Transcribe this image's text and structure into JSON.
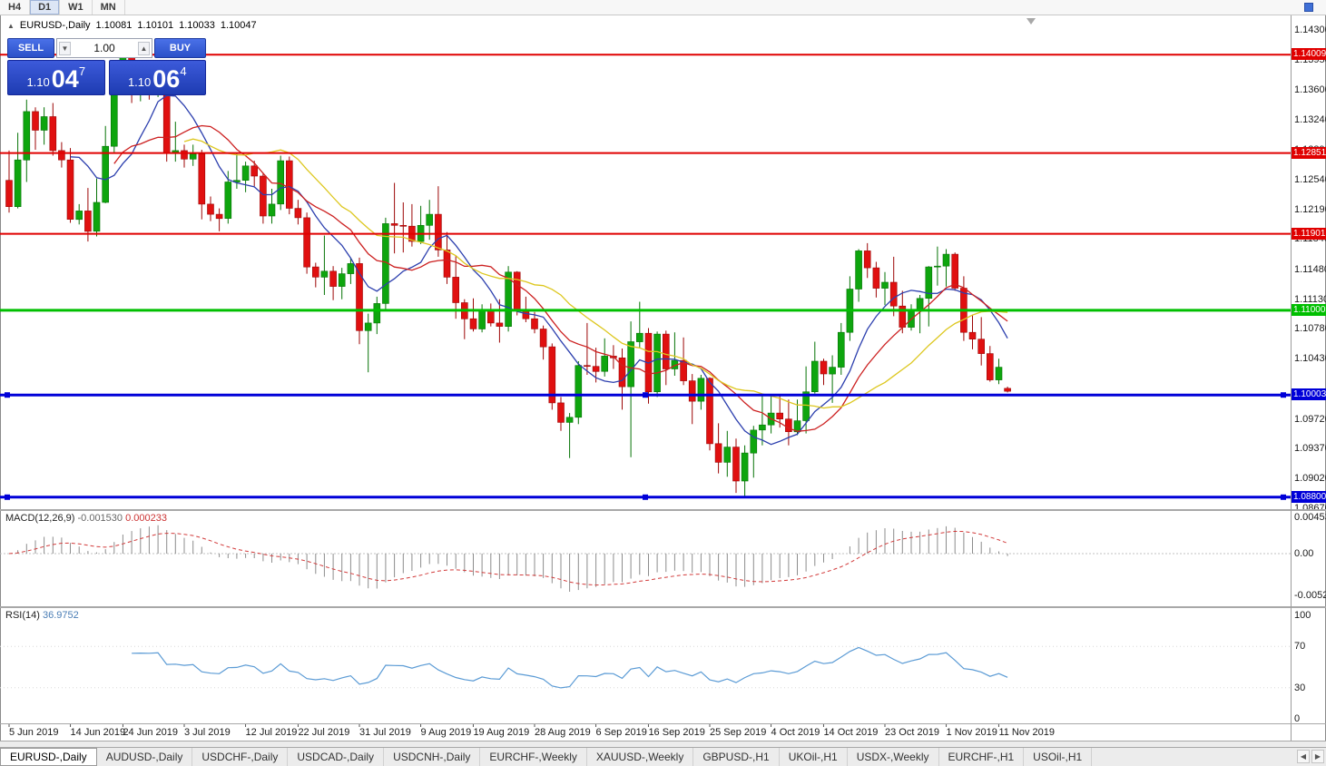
{
  "colors": {
    "bull": "#0ea50e",
    "bull_stroke": "#067306",
    "bear": "#e01010",
    "bear_stroke": "#9c0606",
    "macd_histogram": "#8c8c8c",
    "macd_signal": "#d23b3b",
    "rsi_line": "#5b9bd5",
    "level_red": "#e00000",
    "level_green": "#00bf00",
    "level_blue": "#0000d8",
    "buy_sell_blue": "#2b50c8"
  },
  "toolbar": {
    "timeframes": [
      "H4",
      "D1",
      "W1",
      "MN"
    ],
    "active": "D1"
  },
  "info_line": {
    "collapse_icon": "▲",
    "symbol": "EURUSD-,Daily",
    "open": "1.10081",
    "high": "1.10101",
    "low": "1.10033",
    "close": "1.10047"
  },
  "trade_panel": {
    "sell_label": "SELL",
    "buy_label": "BUY",
    "volume": "1.00",
    "volume_down_icon": "▼",
    "volume_up_icon": "▲",
    "sell_price": {
      "prefix": "1.10",
      "big": "04",
      "sup": "7"
    },
    "buy_price": {
      "prefix": "1.10",
      "big": "06",
      "sup": "4"
    }
  },
  "macd_panel": {
    "name": "MACD(12,26,9)",
    "value_main": "-0.001530",
    "value_signal": "0.000233",
    "axis": [
      {
        "v": 0.004536,
        "label": "0.004536"
      },
      {
        "v": 0.0,
        "label": "0.00"
      },
      {
        "v": -0.0052,
        "label": "-0.00520"
      }
    ]
  },
  "rsi_panel": {
    "name": "RSI(14)",
    "value": "36.9752",
    "axis": [
      {
        "v": 100,
        "label": "100"
      },
      {
        "v": 70,
        "label": "70"
      },
      {
        "v": 30,
        "label": "30"
      },
      {
        "v": 0,
        "label": "0"
      }
    ]
  },
  "tabs": {
    "items": [
      "EURUSD-,Daily",
      "AUDUSD-,Daily",
      "USDCHF-,Daily",
      "USDCAD-,Daily",
      "USDCNH-,Daily",
      "EURCHF-,Weekly",
      "XAUUSD-,Weekly",
      "GBPUSD-,H1",
      "UKOil-,H1",
      "USDX-,Weekly",
      "EURCHF-,H1",
      "USOil-,H1"
    ],
    "active_index": 0,
    "scroll_left_icon": "◀",
    "scroll_right_icon": "▶"
  },
  "chart_data": {
    "type": "candlestick",
    "symbol": "EURUSD-",
    "timeframe": "Daily",
    "ohlc_current": {
      "open": 1.10081,
      "high": 1.10101,
      "low": 1.10033,
      "close": 1.10047
    },
    "price_range": {
      "top": 1.14471,
      "bottom": 1.08659
    },
    "y_axis_ticks": [
      "1.14300",
      "1.13950",
      "1.13600",
      "1.13240",
      "1.12890",
      "1.12540",
      "1.12190",
      "1.11840",
      "1.11480",
      "1.11130",
      "1.10780",
      "1.10430",
      "1.09720",
      "1.09370",
      "1.09020",
      "1.08670"
    ],
    "x_axis_ticks": [
      {
        "i": 0,
        "label": "5 Jun 2019"
      },
      {
        "i": 7,
        "label": "14 Jun 2019"
      },
      {
        "i": 13,
        "label": "24 Jun 2019"
      },
      {
        "i": 20,
        "label": "3 Jul 2019"
      },
      {
        "i": 27,
        "label": "12 Jul 2019"
      },
      {
        "i": 33,
        "label": "22 Jul 2019"
      },
      {
        "i": 40,
        "label": "31 Jul 2019"
      },
      {
        "i": 47,
        "label": "9 Aug 2019"
      },
      {
        "i": 53,
        "label": "19 Aug 2019"
      },
      {
        "i": 60,
        "label": "28 Aug 2019"
      },
      {
        "i": 67,
        "label": "6 Sep 2019"
      },
      {
        "i": 73,
        "label": "16 Sep 2019"
      },
      {
        "i": 80,
        "label": "25 Sep 2019"
      },
      {
        "i": 87,
        "label": "4 Oct 2019"
      },
      {
        "i": 93,
        "label": "14 Oct 2019"
      },
      {
        "i": 100,
        "label": "23 Oct 2019"
      },
      {
        "i": 107,
        "label": "1 Nov 2019"
      },
      {
        "i": 113,
        "label": "11 Nov 2019"
      }
    ],
    "horizontal_levels": [
      {
        "price": 1.14009,
        "label": "1.14009",
        "color": "#e00000",
        "width": 2,
        "selected": false
      },
      {
        "price": 1.12851,
        "label": "1.12851",
        "color": "#e00000",
        "width": 2,
        "selected": false
      },
      {
        "price": 1.11901,
        "label": "1.11901",
        "color": "#e00000",
        "width": 2,
        "selected": false
      },
      {
        "price": 1.11,
        "label": "1.11000",
        "color": "#00bf00",
        "width": 3,
        "selected": false
      },
      {
        "price": 1.10003,
        "label": "1.10003",
        "color": "#0000d8",
        "width": 3,
        "selected": true
      },
      {
        "price": 1.088,
        "label": "1.08800",
        "color": "#0000d8",
        "width": 3,
        "selected": true
      }
    ],
    "moving_averages": [
      {
        "name": "ma-fast-blue",
        "period": 8,
        "color": "#2c3fae"
      },
      {
        "name": "ma-medium-red",
        "period": 13,
        "color": "#cc2020"
      },
      {
        "name": "ma-slow-yellow",
        "period": 21,
        "color": "#ddc71f"
      }
    ],
    "indicators": {
      "macd": {
        "fast": 12,
        "slow": 26,
        "signal": 9,
        "current": -0.00153,
        "current_signal": 0.000233
      },
      "rsi": {
        "period": 14,
        "current": 36.9752,
        "levels": [
          70,
          30
        ]
      }
    },
    "candles": [
      [
        1.1253,
        1.1288,
        1.1215,
        1.1222
      ],
      [
        1.1222,
        1.1309,
        1.122,
        1.1277
      ],
      [
        1.1277,
        1.1348,
        1.1251,
        1.1334
      ],
      [
        1.1334,
        1.1339,
        1.1289,
        1.1312
      ],
      [
        1.1312,
        1.1339,
        1.1295,
        1.1328
      ],
      [
        1.1328,
        1.1344,
        1.1282,
        1.1288
      ],
      [
        1.1288,
        1.1298,
        1.1268,
        1.1277
      ],
      [
        1.1277,
        1.1291,
        1.1203,
        1.1207
      ],
      [
        1.1207,
        1.1225,
        1.1201,
        1.1217
      ],
      [
        1.1217,
        1.1244,
        1.1181,
        1.1193
      ],
      [
        1.1193,
        1.1255,
        1.1187,
        1.1227
      ],
      [
        1.1227,
        1.1317,
        1.1226,
        1.1293
      ],
      [
        1.1293,
        1.1378,
        1.1285,
        1.1369
      ],
      [
        1.1369,
        1.1405,
        1.1362,
        1.1399
      ],
      [
        1.1399,
        1.1412,
        1.1344,
        1.1367
      ],
      [
        1.1367,
        1.1391,
        1.1346,
        1.1369
      ],
      [
        1.1369,
        1.1388,
        1.1348,
        1.1368
      ],
      [
        1.1368,
        1.1392,
        1.1351,
        1.1373
      ],
      [
        1.1373,
        1.1377,
        1.1275,
        1.1285
      ],
      [
        1.1285,
        1.1322,
        1.1275,
        1.1288
      ],
      [
        1.1288,
        1.1295,
        1.1268,
        1.1278
      ],
      [
        1.1278,
        1.1295,
        1.127,
        1.1284
      ],
      [
        1.1284,
        1.1289,
        1.1207,
        1.1225
      ],
      [
        1.1225,
        1.1234,
        1.1205,
        1.1213
      ],
      [
        1.1213,
        1.122,
        1.1193,
        1.1208
      ],
      [
        1.1208,
        1.1264,
        1.1202,
        1.1251
      ],
      [
        1.1251,
        1.1285,
        1.1243,
        1.1253
      ],
      [
        1.1253,
        1.1275,
        1.1239,
        1.127
      ],
      [
        1.127,
        1.1276,
        1.1246,
        1.1258
      ],
      [
        1.1258,
        1.1262,
        1.1202,
        1.1211
      ],
      [
        1.1211,
        1.1243,
        1.1202,
        1.1225
      ],
      [
        1.1225,
        1.1282,
        1.1218,
        1.1276
      ],
      [
        1.1276,
        1.1281,
        1.1213,
        1.122
      ],
      [
        1.122,
        1.123,
        1.1201,
        1.1209
      ],
      [
        1.1209,
        1.1215,
        1.1143,
        1.1151
      ],
      [
        1.1151,
        1.1156,
        1.1127,
        1.1139
      ],
      [
        1.1139,
        1.1188,
        1.1118,
        1.1146
      ],
      [
        1.1146,
        1.1152,
        1.1112,
        1.1128
      ],
      [
        1.1128,
        1.115,
        1.1113,
        1.1143
      ],
      [
        1.1143,
        1.1162,
        1.1131,
        1.1155
      ],
      [
        1.1155,
        1.1162,
        1.106,
        1.1076
      ],
      [
        1.1076,
        1.1096,
        1.1027,
        1.1085
      ],
      [
        1.1085,
        1.1116,
        1.1072,
        1.1108
      ],
      [
        1.1108,
        1.1209,
        1.1101,
        1.1202
      ],
      [
        1.1202,
        1.125,
        1.1167,
        1.12
      ],
      [
        1.12,
        1.1227,
        1.1168,
        1.1199
      ],
      [
        1.1199,
        1.1225,
        1.1175,
        1.1181
      ],
      [
        1.1181,
        1.1223,
        1.1178,
        1.12
      ],
      [
        1.12,
        1.123,
        1.1183,
        1.1213
      ],
      [
        1.1213,
        1.1246,
        1.1163,
        1.1171
      ],
      [
        1.1171,
        1.1192,
        1.1131,
        1.1139
      ],
      [
        1.1139,
        1.1164,
        1.109,
        1.1109
      ],
      [
        1.1109,
        1.1113,
        1.1066,
        1.109
      ],
      [
        1.109,
        1.1114,
        1.1075,
        1.1078
      ],
      [
        1.1078,
        1.1107,
        1.1074,
        1.1099
      ],
      [
        1.1099,
        1.1108,
        1.1081,
        1.1085
      ],
      [
        1.1085,
        1.1113,
        1.1062,
        1.1081
      ],
      [
        1.1081,
        1.1152,
        1.1075,
        1.1145
      ],
      [
        1.1145,
        1.1146,
        1.1094,
        1.1101
      ],
      [
        1.1101,
        1.1116,
        1.1086,
        1.109
      ],
      [
        1.109,
        1.1098,
        1.1073,
        1.1078
      ],
      [
        1.1078,
        1.1082,
        1.1042,
        1.1057
      ],
      [
        1.1057,
        1.1061,
        1.0983,
        1.0991
      ],
      [
        1.0991,
        1.0998,
        1.0958,
        1.0968
      ],
      [
        1.0968,
        1.0979,
        1.0926,
        1.0974
      ],
      [
        1.0974,
        1.104,
        1.0966,
        1.1035
      ],
      [
        1.1035,
        1.1085,
        1.1024,
        1.1034
      ],
      [
        1.1034,
        1.1056,
        1.1015,
        1.1028
      ],
      [
        1.1028,
        1.1067,
        1.1022,
        1.1046
      ],
      [
        1.1046,
        1.1059,
        1.1031,
        1.1044
      ],
      [
        1.1044,
        1.1055,
        1.0983,
        1.101
      ],
      [
        1.101,
        1.1087,
        1.0927,
        1.1063
      ],
      [
        1.1063,
        1.111,
        1.1055,
        1.1073
      ],
      [
        1.1073,
        1.1079,
        1.099,
        1.1004
      ],
      [
        1.1004,
        1.1075,
        1.0998,
        1.1072
      ],
      [
        1.1072,
        1.1076,
        1.1012,
        1.1031
      ],
      [
        1.1031,
        1.1074,
        1.1023,
        1.1041
      ],
      [
        1.1041,
        1.1068,
        1.1012,
        1.1017
      ],
      [
        1.1017,
        1.1025,
        1.0966,
        1.0993
      ],
      [
        1.0993,
        1.1024,
        1.0983,
        1.102
      ],
      [
        1.102,
        1.1021,
        1.0935,
        1.0943
      ],
      [
        1.0943,
        1.0967,
        1.0908,
        1.0921
      ],
      [
        1.0921,
        1.0958,
        1.0904,
        1.0939
      ],
      [
        1.0939,
        1.0949,
        1.0885,
        1.0899
      ],
      [
        1.0899,
        1.0941,
        1.0879,
        1.0932
      ],
      [
        1.0932,
        1.0964,
        1.0903,
        1.0959
      ],
      [
        1.0959,
        1.0999,
        1.0941,
        1.0965
      ],
      [
        1.0965,
        1.0999,
        1.0955,
        1.0979
      ],
      [
        1.0979,
        1.1,
        1.0962,
        1.0972
      ],
      [
        1.0972,
        1.0995,
        1.0941,
        1.0957
      ],
      [
        1.0957,
        1.0995,
        1.0953,
        1.097
      ],
      [
        1.097,
        1.1034,
        1.0955,
        1.1004
      ],
      [
        1.1004,
        1.1063,
        1.1002,
        1.104
      ],
      [
        1.104,
        1.1043,
        1.1012,
        1.1025
      ],
      [
        1.1025,
        1.1047,
        1.0991,
        1.1033
      ],
      [
        1.1033,
        1.1085,
        1.1024,
        1.1074
      ],
      [
        1.1074,
        1.114,
        1.1064,
        1.1125
      ],
      [
        1.1125,
        1.1172,
        1.111,
        1.117
      ],
      [
        1.117,
        1.1179,
        1.1138,
        1.115
      ],
      [
        1.115,
        1.1157,
        1.1115,
        1.1126
      ],
      [
        1.1126,
        1.1145,
        1.1106,
        1.1133
      ],
      [
        1.1133,
        1.1163,
        1.1093,
        1.1105
      ],
      [
        1.1105,
        1.1123,
        1.1073,
        1.108
      ],
      [
        1.108,
        1.1107,
        1.1076,
        1.1099
      ],
      [
        1.1099,
        1.1118,
        1.1073,
        1.1114
      ],
      [
        1.1114,
        1.1152,
        1.1081,
        1.1151
      ],
      [
        1.1151,
        1.1175,
        1.1129,
        1.1152
      ],
      [
        1.1152,
        1.1172,
        1.1128,
        1.1166
      ],
      [
        1.1166,
        1.1168,
        1.1123,
        1.1126
      ],
      [
        1.1126,
        1.114,
        1.1064,
        1.1074
      ],
      [
        1.1074,
        1.1094,
        1.1054,
        1.1066
      ],
      [
        1.1066,
        1.1092,
        1.1035,
        1.1049
      ],
      [
        1.1049,
        1.1058,
        1.1016,
        1.1018
      ],
      [
        1.1018,
        1.1043,
        1.1013,
        1.1033
      ],
      [
        1.10081,
        1.10101,
        1.10033,
        1.10047
      ]
    ]
  }
}
